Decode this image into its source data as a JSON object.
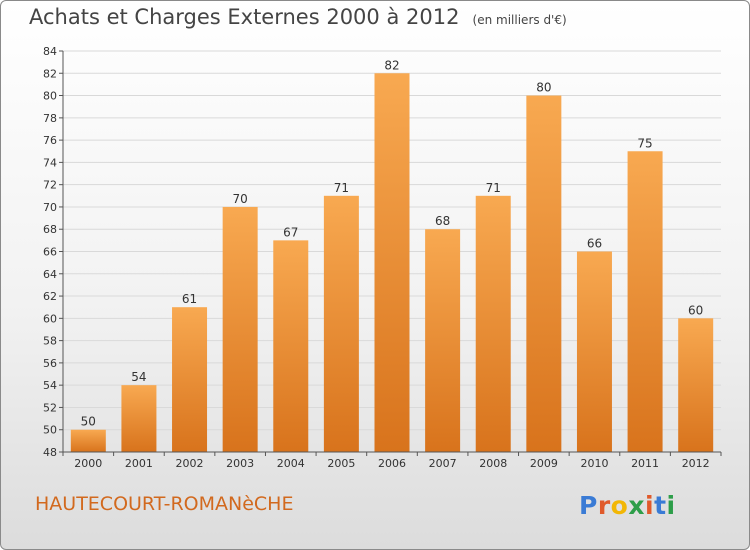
{
  "title": "Achats et Charges Externes 2000 à 2012",
  "subtitle": "(en milliers d'€)",
  "location": "HAUTECOURT-ROMANèCHE",
  "logo": {
    "letters": [
      "P",
      "r",
      "o",
      "x",
      "i",
      "t",
      "i"
    ],
    "colors": [
      "#3a7bd5",
      "#e05a2b",
      "#f2b705",
      "#2d9e49",
      "#e05a2b",
      "#3a7bd5",
      "#2d9e49"
    ]
  },
  "colors": {
    "bar_light": "#f8a951",
    "bar_dark": "#d8731c",
    "grid": "#d9d9d9"
  },
  "chart_data": {
    "type": "bar",
    "title": "Achats et Charges Externes 2000 à 2012",
    "subtitle": "(en milliers d'€)",
    "xlabel": "",
    "ylabel": "",
    "categories": [
      "2000",
      "2001",
      "2002",
      "2003",
      "2004",
      "2005",
      "2006",
      "2007",
      "2008",
      "2009",
      "2010",
      "2011",
      "2012"
    ],
    "values": [
      50,
      54,
      61,
      70,
      67,
      71,
      82,
      68,
      71,
      80,
      66,
      75,
      60
    ],
    "ylim": [
      48,
      84
    ],
    "yticks": [
      48,
      50,
      52,
      54,
      56,
      58,
      60,
      62,
      64,
      66,
      68,
      70,
      72,
      74,
      76,
      78,
      80,
      82,
      84
    ],
    "grid": true,
    "legend": "none"
  }
}
